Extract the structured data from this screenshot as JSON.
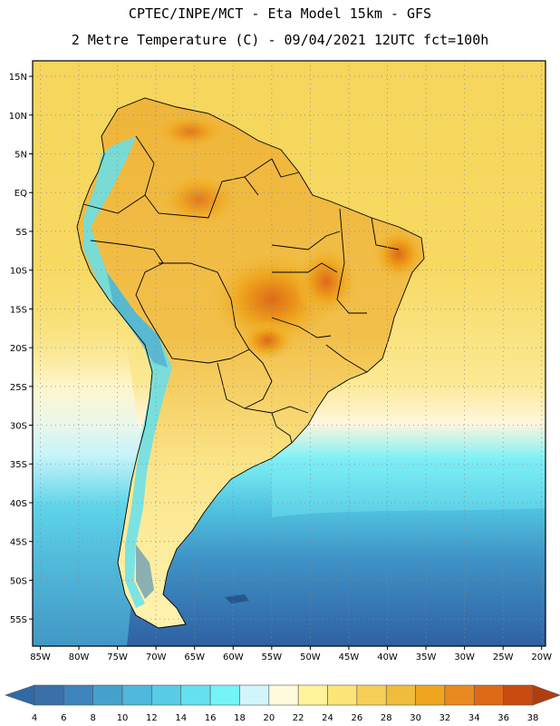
{
  "header": {
    "line1": "CPTEC/INPE/MCT  -  Eta Model 15km  -  GFS",
    "line2": "2 Metre Temperature (C) - 09/04/2021 12UTC fct=100h"
  },
  "map": {
    "lat_labels": [
      "15N",
      "10N",
      "5N",
      "EQ",
      "5S",
      "10S",
      "15S",
      "20S",
      "25S",
      "30S",
      "35S",
      "40S",
      "45S",
      "50S",
      "55S"
    ],
    "lon_labels": [
      "85W",
      "80W",
      "75W",
      "70W",
      "65W",
      "60W",
      "55W",
      "50W",
      "45W",
      "40W",
      "35W",
      "30W",
      "25W",
      "20W"
    ],
    "lat_values": [
      15,
      10,
      5,
      0,
      -5,
      -10,
      -15,
      -20,
      -25,
      -30,
      -35,
      -40,
      -45,
      -50,
      -55
    ],
    "lon_values": [
      -85,
      -80,
      -75,
      -70,
      -65,
      -60,
      -55,
      -50,
      -45,
      -40,
      -35,
      -30,
      -25,
      -20
    ],
    "extent": {
      "lon_min": -86,
      "lon_max": -19.5,
      "lat_min": -58.5,
      "lat_max": 17
    }
  },
  "colorbar": {
    "ticks": [
      "4",
      "6",
      "8",
      "10",
      "12",
      "14",
      "16",
      "18",
      "20",
      "22",
      "24",
      "26",
      "28",
      "30",
      "32",
      "34",
      "36",
      "38"
    ],
    "colors": [
      "#3a6fa8",
      "#3d85bc",
      "#45a1cc",
      "#4fb8dc",
      "#58cbe6",
      "#64e0ee",
      "#75f4f8",
      "#d2f4fb",
      "#fffadb",
      "#fff39c",
      "#fde476",
      "#f6cf58",
      "#f0bc3c",
      "#efa51e",
      "#e88a20",
      "#dd6a17",
      "#c84b10"
    ],
    "low_color": "#2f6aa6",
    "high_color": "#b03e12"
  }
}
